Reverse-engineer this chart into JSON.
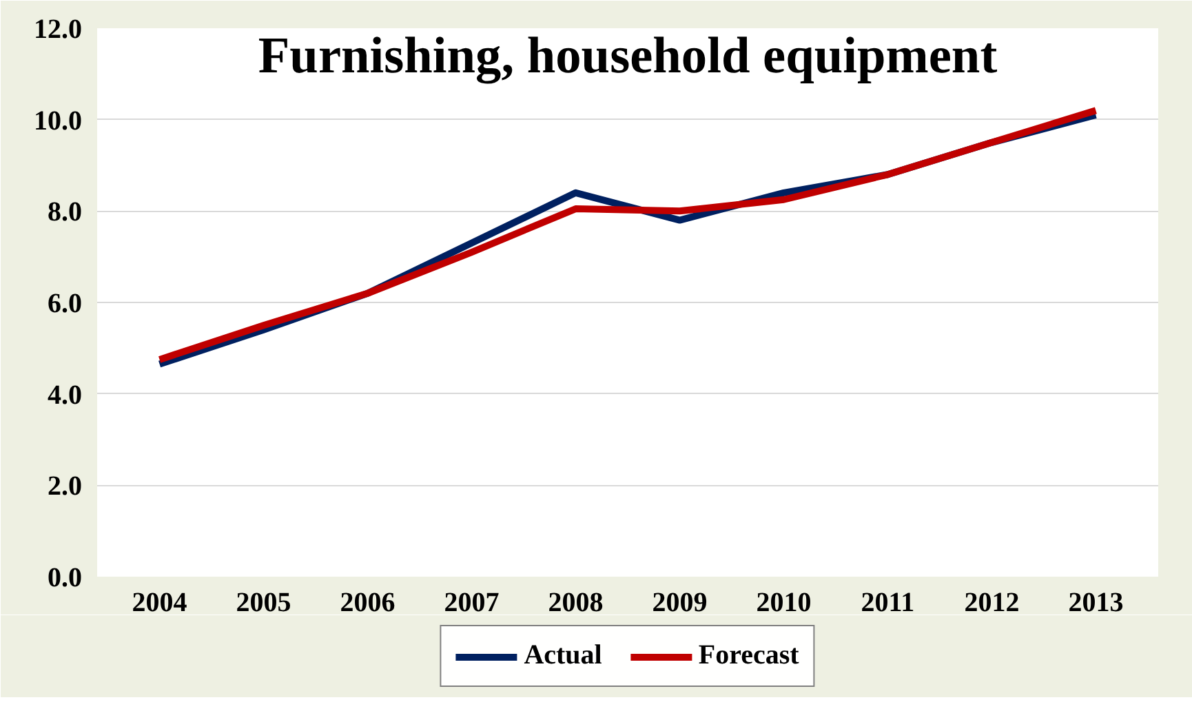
{
  "chart_data": {
    "type": "line",
    "title": "Furnishing, household equipment",
    "categories": [
      "2004",
      "2005",
      "2006",
      "2007",
      "2008",
      "2009",
      "2010",
      "2011",
      "2012",
      "2013"
    ],
    "series": [
      {
        "name": "Actual",
        "color": "#002060",
        "values": [
          4.65,
          5.4,
          6.2,
          7.3,
          8.4,
          7.8,
          8.4,
          8.8,
          9.5,
          10.1
        ]
      },
      {
        "name": "Forecast",
        "color": "#c00000",
        "values": [
          4.75,
          5.5,
          6.2,
          7.1,
          8.05,
          8.0,
          8.25,
          8.8,
          9.5,
          10.2
        ]
      }
    ],
    "ylim": [
      0,
      12
    ],
    "yticks": [
      {
        "value": 0,
        "label": "0.0"
      },
      {
        "value": 2,
        "label": "2.0"
      },
      {
        "value": 4,
        "label": "4.0"
      },
      {
        "value": 6,
        "label": "6.0"
      },
      {
        "value": 8,
        "label": "8.0"
      },
      {
        "value": 10,
        "label": "10.0"
      },
      {
        "value": 12,
        "label": "12.0"
      }
    ],
    "grid": "y",
    "legend": "bottom",
    "marker": "none",
    "line_style": "solid"
  }
}
